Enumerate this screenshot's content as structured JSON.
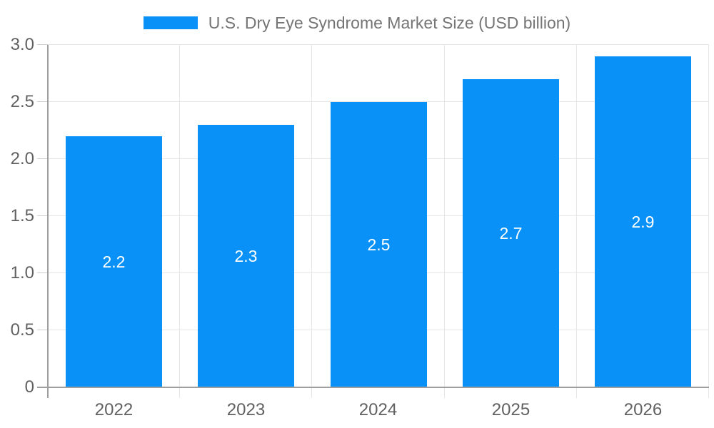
{
  "legend": {
    "label": "U.S. Dry Eye Syndrome Market Size (USD billion)"
  },
  "chart_data": {
    "type": "bar",
    "title": "U.S. Dry Eye Syndrome Market Size (USD billion)",
    "categories": [
      "2022",
      "2023",
      "2024",
      "2025",
      "2026"
    ],
    "values": [
      2.2,
      2.3,
      2.5,
      2.7,
      2.9
    ],
    "value_labels": [
      "2.2",
      "2.3",
      "2.5",
      "2.7",
      "2.9"
    ],
    "xlabel": "",
    "ylabel": "",
    "ylim": [
      0,
      3.0
    ],
    "ytick_step": 0.5,
    "ytick_labels": [
      "0",
      "0.5",
      "1.0",
      "1.5",
      "2.0",
      "2.5",
      "3.0"
    ],
    "grid": true,
    "legend_position": "top"
  },
  "colors": {
    "bar": "#0991f8",
    "gridline": "#e6e6e6",
    "tick_stub": "#cccccc",
    "axis": "#9e9e9e",
    "axis_tick_text": "#616161",
    "legend_text": "#757575",
    "value_label": "#ffffff",
    "background": "#ffffff"
  }
}
